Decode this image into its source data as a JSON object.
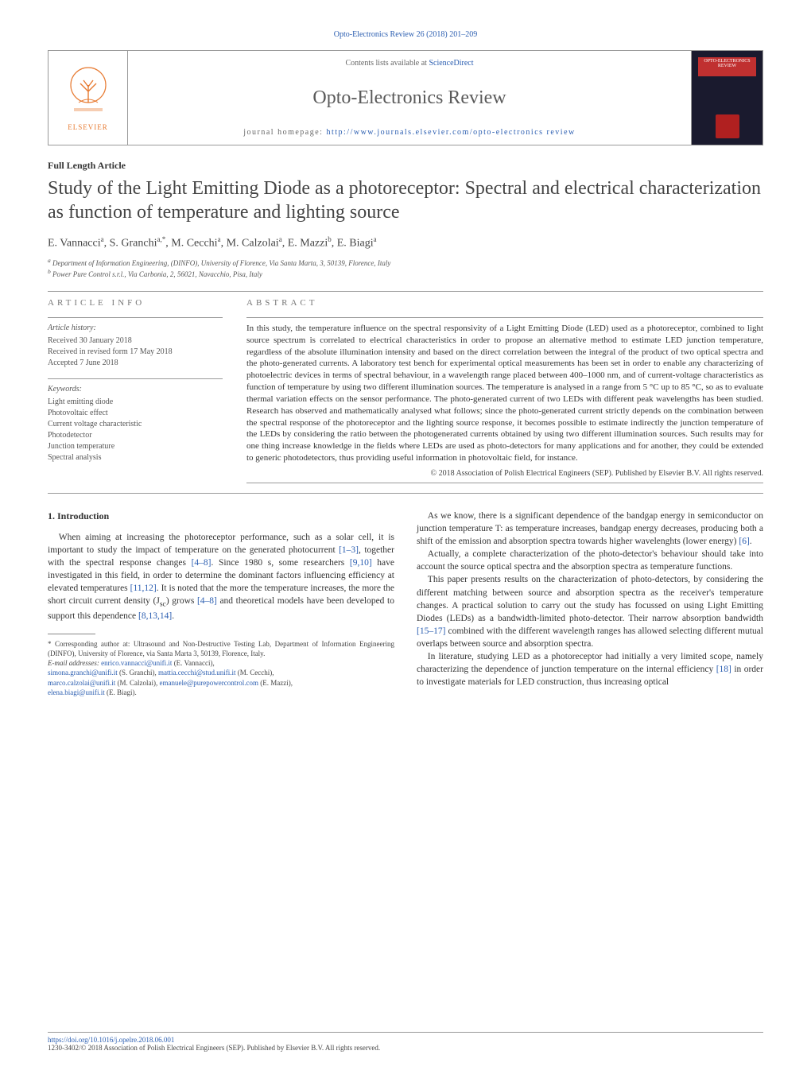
{
  "journal_ref": "Opto-Electronics Review 26 (2018) 201–209",
  "header": {
    "elsevier": "ELSEVIER",
    "contents_prefix": "Contents lists available at ",
    "contents_link": "ScienceDirect",
    "journal_name": "Opto-Electronics Review",
    "homepage_prefix": "journal homepage: ",
    "homepage_url": "http://www.journals.elsevier.com/opto-electronics review",
    "cover_title": "OPTO-ELECTRONICS REVIEW"
  },
  "article_type": "Full Length Article",
  "title": "Study of the Light Emitting Diode as a photoreceptor: Spectral and electrical characterization as function of temperature and lighting source",
  "authors_html": "E. Vannacci<sup>a</sup>, S. Granchi<sup>a,*</sup>, M. Cecchi<sup>a</sup>, M. Calzolai<sup>a</sup>, E. Mazzi<sup>b</sup>, E. Biagi<sup>a</sup>",
  "authors": [
    {
      "name": "E. Vannacci",
      "aff": "a"
    },
    {
      "name": "S. Granchi",
      "aff": "a,*"
    },
    {
      "name": "M. Cecchi",
      "aff": "a"
    },
    {
      "name": "M. Calzolai",
      "aff": "a"
    },
    {
      "name": "E. Mazzi",
      "aff": "b"
    },
    {
      "name": "E. Biagi",
      "aff": "a"
    }
  ],
  "affiliations": {
    "a": "Department of Information Engineering, (DINFO), University of Florence, Via Santa Marta, 3, 50139, Florence, Italy",
    "b": "Power Pure Control s.r.l., Via Carbonia, 2, 56021, Navacchio, Pisa, Italy"
  },
  "article_info": {
    "heading": "ARTICLE INFO",
    "history_label": "Article history:",
    "history": [
      "Received 30 January 2018",
      "Received in revised form 17 May 2018",
      "Accepted 7 June 2018"
    ],
    "keywords_label": "Keywords:",
    "keywords": [
      "Light emitting diode",
      "Photovoltaic effect",
      "Current voltage characteristic",
      "Photodetector",
      "Junction temperature",
      "Spectral analysis"
    ]
  },
  "abstract": {
    "heading": "ABSTRACT",
    "text": "In this study, the temperature influence on the spectral responsivity of a Light Emitting Diode (LED) used as a photoreceptor, combined to light source spectrum is correlated to electrical characteristics in order to propose an alternative method to estimate LED junction temperature, regardless of the absolute illumination intensity and based on the direct correlation between the integral of the product of two optical spectra and the photo-generated currents. A laboratory test bench for experimental optical measurements has been set in order to enable any characterizing of photoelectric devices in terms of spectral behaviour, in a wavelength range placed between 400–1000 nm, and of current-voltage characteristics as function of temperature by using two different illumination sources. The temperature is analysed in a range from 5 °C up to 85 °C, so as to evaluate thermal variation effects on the sensor performance. The photo-generated current of two LEDs with different peak wavelengths has been studied. Research has observed and mathematically analysed what follows; since the photo-generated current strictly depends on the combination between the spectral response of the photoreceptor and the lighting source response, it becomes possible to estimate indirectly the junction temperature of the LEDs by considering the ratio between the photogenerated currents obtained by using two different illumination sources. Such results may for one thing increase knowledge in the fields where LEDs are used as photo-detectors for many applications and for another, they could be extended to generic photodetectors, thus providing useful information in photovoltaic field, for instance.",
    "copyright": "© 2018 Association of Polish Electrical Engineers (SEP). Published by Elsevier B.V. All rights reserved."
  },
  "intro": {
    "heading": "1.  Introduction",
    "p1_a": "When aiming at increasing the photoreceptor performance, such as a solar cell, it is important to study the impact of temperature on the generated photocurrent ",
    "p1_r1": "[1–3]",
    "p1_b": ", together with the spectral response changes ",
    "p1_r2": "[4–8]",
    "p1_c": ". Since 1980 s, some researchers ",
    "p1_r3": "[9,10]",
    "p1_d": " have investigated in this field, in order to determine the dominant factors influencing efficiency at elevated temperatures ",
    "p1_r4": "[11,12]",
    "p1_e": ". It is noted that the more the temperature increases, the more the short circuit current density (J",
    "p1_sc": "sc",
    "p1_f": ") grows ",
    "p1_r5": "[4–8]",
    "p1_g": " and theoretical models have been developed to support this dependence ",
    "p1_r6": "[8,13,14]",
    "p1_h": "."
  },
  "col2": {
    "p1_a": "As we know, there is a significant dependence of the bandgap energy in semiconductor on junction temperature T: as temperature increases, bandgap energy decreases, producing both a shift of the emission and absorption spectra towards higher wavelenghts (lower energy) ",
    "p1_r1": "[6]",
    "p1_b": ".",
    "p2": "Actually, a complete characterization of the photo-detector's behaviour should take into account the source optical spectra and the absorption spectra as temperature functions.",
    "p3_a": "This paper presents results on the characterization of photo-detectors, by considering the different matching between source and absorption spectra as the receiver's temperature changes. A practical solution to carry out the study has focussed on using Light Emitting Diodes (LEDs) as a bandwidth-limited photo-detector. Their narrow absorption bandwidth ",
    "p3_r1": "[15–17]",
    "p3_b": " combined with the different wavelength ranges has allowed selecting different mutual overlaps between source and absorption spectra.",
    "p4_a": "In literature, studying LED as a photoreceptor had initially a very limited scope, namely characterizing the dependence of junction temperature on the internal efficiency ",
    "p4_r1": "[18]",
    "p4_b": " in order to investigate materials for LED construction, thus increasing optical"
  },
  "footnote": {
    "corr": "* Corresponding author at: Ultrasound and Non-Destructive Testing Lab, Department of Information Engineering (DINFO), University of Florence, via Santa Marta 3, 50139, Florence, Italy.",
    "email_label": "E-mail addresses: ",
    "emails": [
      {
        "addr": "enrico.vannacci@unifi.it",
        "who": " (E. Vannacci),"
      },
      {
        "addr": "simona.granchi@unifi.it",
        "who": " (S. Granchi), "
      },
      {
        "addr": "mattia.cecchi@stud.unifi.it",
        "who": " (M. Cecchi),"
      },
      {
        "addr": "marco.calzolai@unifi.it",
        "who": " (M. Calzolai), "
      },
      {
        "addr": "emanuele@purepowercontrol.com",
        "who": " (E. Mazzi),"
      },
      {
        "addr": "elena.biagi@unifi.it",
        "who": " (E. Biagi)."
      }
    ]
  },
  "bottom": {
    "doi": "https://doi.org/10.1016/j.opelre.2018.06.001",
    "issn_line": "1230-3402/© 2018 Association of Polish Electrical Engineers (SEP). Published by Elsevier B.V. All rights reserved."
  },
  "colors": {
    "link": "#2a5db0",
    "elsevier_orange": "#e77a31",
    "cover_bg": "#1a1a2e",
    "cover_red": "#c03030"
  }
}
